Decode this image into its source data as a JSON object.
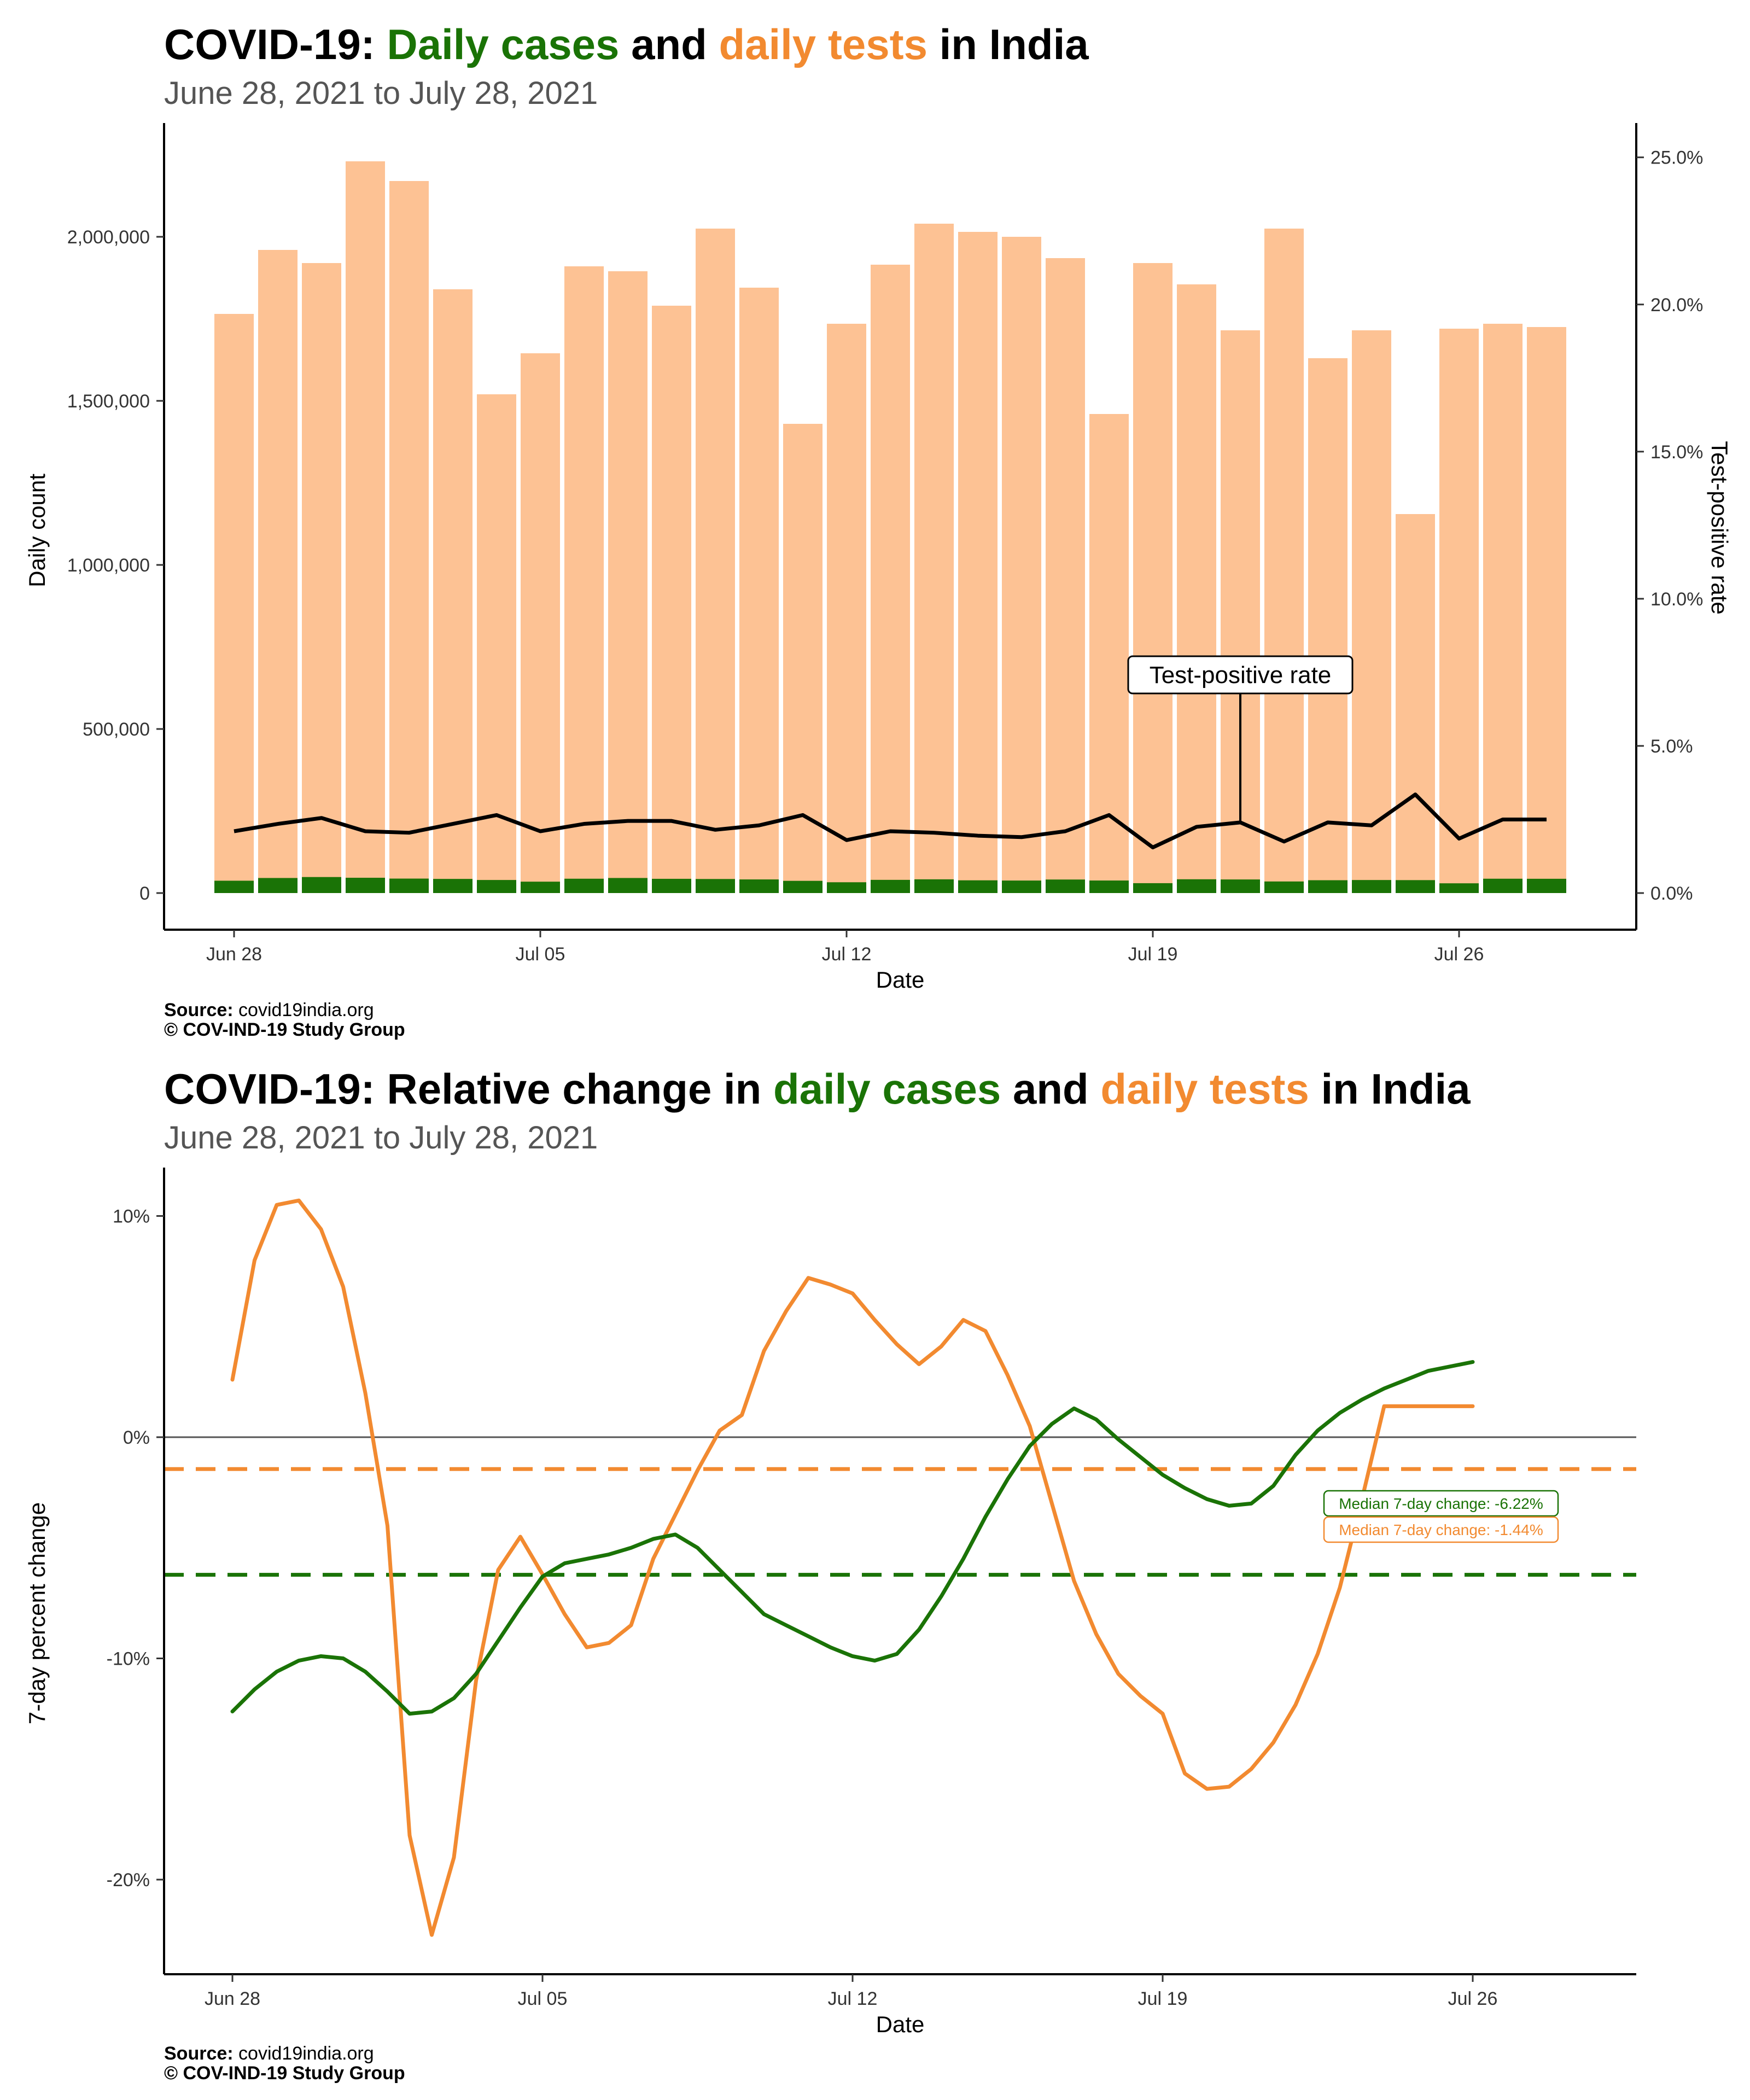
{
  "colors": {
    "cases": "#1a7306",
    "tests": "#f28a30",
    "tests_bar": "#fdc294",
    "tpr_line": "#000000",
    "subtitle": "#555555"
  },
  "chart1": {
    "title_parts": [
      {
        "text": "COVID-19: ",
        "color": "#000000"
      },
      {
        "text": "Daily cases",
        "color": "#1a7306"
      },
      {
        "text": " and ",
        "color": "#000000"
      },
      {
        "text": "daily tests",
        "color": "#f28a30"
      },
      {
        "text": " in India",
        "color": "#000000"
      }
    ],
    "subtitle": "June 28, 2021 to July 28, 2021",
    "source_label": "Source:",
    "source_value": " covid19india.org",
    "copyright": "© COV-IND-19 Study Group"
  },
  "chart2": {
    "title_parts": [
      {
        "text": "COVID-19: Relative change in ",
        "color": "#000000"
      },
      {
        "text": "daily cases",
        "color": "#1a7306"
      },
      {
        "text": " and ",
        "color": "#000000"
      },
      {
        "text": "daily tests",
        "color": "#f28a30"
      },
      {
        "text": " in India",
        "color": "#000000"
      }
    ],
    "subtitle": "June 28, 2021 to July 28, 2021",
    "source_label": "Source:",
    "source_value": " covid19india.org",
    "copyright": "© COV-IND-19 Study Group"
  },
  "chart_data": [
    {
      "type": "bar",
      "title": "COVID-19: Daily cases and daily tests in India",
      "subtitle": "June 28, 2021 to July 28, 2021",
      "xlabel": "Date",
      "ylabel": "Daily count",
      "y2label": "Test-positive rate",
      "ylim": [
        0,
        2300000
      ],
      "y2lim": [
        0,
        26
      ],
      "x_tick_labels": [
        "Jun 28",
        "Jul 05",
        "Jul 12",
        "Jul 19",
        "Jul 26"
      ],
      "y_tick_labels": [
        "0",
        "500,000",
        "1,000,000",
        "1,500,000",
        "2,000,000"
      ],
      "y_tick_values": [
        0,
        500000,
        1000000,
        1500000,
        2000000
      ],
      "y2_tick_labels": [
        "0.0%",
        "5.0%",
        "10.0%",
        "15.0%",
        "20.0%",
        "25.0%"
      ],
      "y2_tick_values": [
        0,
        5,
        10,
        15,
        20,
        25
      ],
      "annotation": "Test-positive rate",
      "annotation_day_index": 23,
      "grid": false,
      "dates": [
        "Jun 28",
        "Jun 29",
        "Jun 30",
        "Jul 01",
        "Jul 02",
        "Jul 03",
        "Jul 04",
        "Jul 05",
        "Jul 06",
        "Jul 07",
        "Jul 08",
        "Jul 09",
        "Jul 10",
        "Jul 11",
        "Jul 12",
        "Jul 13",
        "Jul 14",
        "Jul 15",
        "Jul 16",
        "Jul 17",
        "Jul 18",
        "Jul 19",
        "Jul 20",
        "Jul 21",
        "Jul 22",
        "Jul 23",
        "Jul 24",
        "Jul 25",
        "Jul 26",
        "Jul 27",
        "Jul 28"
      ],
      "series": [
        {
          "name": "Daily tests",
          "values": [
            1765000,
            1960000,
            1920000,
            2230000,
            2170000,
            1840000,
            1520000,
            1645000,
            1910000,
            1895000,
            1790000,
            2025000,
            1845000,
            1430000,
            1735000,
            1915000,
            2040000,
            2015000,
            2000000,
            1935000,
            1460000,
            1920000,
            1855000,
            1715000,
            2025000,
            1630000,
            1715000,
            1155000,
            1720000,
            1735000,
            1725000
          ]
        },
        {
          "name": "Daily cases",
          "values": [
            37600,
            45900,
            48800,
            46600,
            44100,
            43100,
            39800,
            34700,
            43700,
            45900,
            43400,
            42800,
            41500,
            37200,
            32900,
            40200,
            41800,
            38800,
            38100,
            41200,
            38200,
            30100,
            42000,
            41400,
            35300,
            39100,
            39700,
            39400,
            29700,
            43700,
            43500
          ]
        },
        {
          "name": "Test-positive rate",
          "values": [
            2.1,
            2.35,
            2.55,
            2.1,
            2.05,
            2.35,
            2.65,
            2.1,
            2.35,
            2.45,
            2.45,
            2.15,
            2.3,
            2.65,
            1.8,
            2.1,
            2.05,
            1.95,
            1.9,
            2.1,
            2.65,
            1.55,
            2.25,
            2.4,
            1.75,
            2.4,
            2.3,
            3.35,
            1.85,
            2.5,
            2.5
          ]
        }
      ]
    },
    {
      "type": "line",
      "title": "COVID-19: Relative change in daily cases and daily tests in India",
      "subtitle": "June 28, 2021 to July 28, 2021",
      "xlabel": "Date",
      "ylabel": "7-day percent change",
      "ylim": [
        -24,
        12
      ],
      "x_tick_labels": [
        "Jun 28",
        "Jul 05",
        "Jul 12",
        "Jul 19",
        "Jul 26"
      ],
      "y_tick_labels": [
        "-20%",
        "-10%",
        "0%",
        "10%"
      ],
      "y_tick_values": [
        -20,
        -10,
        0,
        10
      ],
      "grid": false,
      "reference_lines": [
        {
          "name": "zero",
          "value": 0
        },
        {
          "name": "Median 7-day change (cases)",
          "value": -6.22,
          "label": "Median 7-day change: -6.22%"
        },
        {
          "name": "Median 7-day change (tests)",
          "value": -1.44,
          "label": "Median 7-day change: -1.44%"
        }
      ],
      "series": [
        {
          "name": "Daily cases",
          "x": [
            0,
            0.5,
            1,
            1.5,
            2,
            2.5,
            3,
            3.5,
            4,
            4.5,
            5,
            5.5,
            6,
            6.5,
            7,
            7.5,
            8,
            8.5,
            9,
            9.5,
            10,
            10.5,
            11,
            11.5,
            12,
            12.5,
            13,
            13.5,
            14,
            14.5,
            15,
            15.5,
            16,
            16.5,
            17,
            17.5,
            18,
            18.5,
            19,
            19.5,
            20,
            20.5,
            21,
            21.5,
            22,
            22.5,
            23,
            23.5,
            24,
            24.5,
            25,
            25.5,
            26,
            26.5,
            27,
            27.5,
            28,
            28.5,
            29,
            29.5,
            30
          ],
          "values": [
            -12.4,
            -11.4,
            -10.6,
            -10.1,
            -9.9,
            -10.0,
            -10.6,
            -11.5,
            -12.5,
            -12.4,
            -11.8,
            -10.7,
            -9.2,
            -7.7,
            -6.3,
            -5.7,
            -5.5,
            -5.3,
            -5.0,
            -4.6,
            -4.4,
            -5.0,
            -6.0,
            -7.0,
            -8.0,
            -8.5,
            -9.0,
            -9.5,
            -9.9,
            -10.1,
            -9.8,
            -8.7,
            -7.2,
            -5.5,
            -3.6,
            -1.9,
            -0.4,
            0.6,
            1.3,
            0.8,
            -0.1,
            -0.9,
            -1.7,
            -2.3,
            -2.8,
            -3.1,
            -3.0,
            -2.2,
            -0.8,
            0.3,
            1.1,
            1.7,
            2.2,
            2.6,
            3.0,
            3.2,
            3.4,
            3.4,
            3.4,
            3.4,
            3.4
          ]
        },
        {
          "name": "Daily tests",
          "x": [
            0,
            0.5,
            1,
            1.5,
            2,
            2.5,
            3,
            3.5,
            4,
            4.5,
            5,
            5.5,
            6,
            6.5,
            7,
            7.5,
            8,
            8.5,
            9,
            9.5,
            10,
            10.5,
            11,
            11.5,
            12,
            12.5,
            13,
            13.5,
            14,
            14.5,
            15,
            15.5,
            16,
            16.5,
            17,
            17.5,
            18,
            18.5,
            19,
            19.5,
            20,
            20.5,
            21,
            21.5,
            22,
            22.5,
            23,
            23.5,
            24,
            24.5,
            25,
            25.5,
            26,
            26.5,
            27,
            27.5,
            28,
            28.5,
            29,
            29.5,
            30
          ],
          "values": [
            2.6,
            8.0,
            10.5,
            10.7,
            9.4,
            6.8,
            2.0,
            -4.0,
            -18.0,
            -22.5,
            -19.0,
            -11.0,
            -6.0,
            -4.5,
            -6.2,
            -8.0,
            -9.5,
            -9.3,
            -8.5,
            -5.5,
            -3.5,
            -1.5,
            0.3,
            1.0,
            3.9,
            5.7,
            7.2,
            6.9,
            6.5,
            5.3,
            4.2,
            3.3,
            4.1,
            5.3,
            4.8,
            2.8,
            0.5,
            -3.0,
            -6.5,
            -8.9,
            -10.7,
            -11.7,
            -12.5,
            -15.2,
            -15.9,
            -15.8,
            -15.0,
            -13.8,
            -12.1,
            -9.8,
            -6.8,
            -2.8,
            1.4,
            1.4,
            1.4,
            1.4,
            1.4,
            1.4,
            1.4,
            1.4,
            1.4
          ]
        }
      ]
    }
  ]
}
